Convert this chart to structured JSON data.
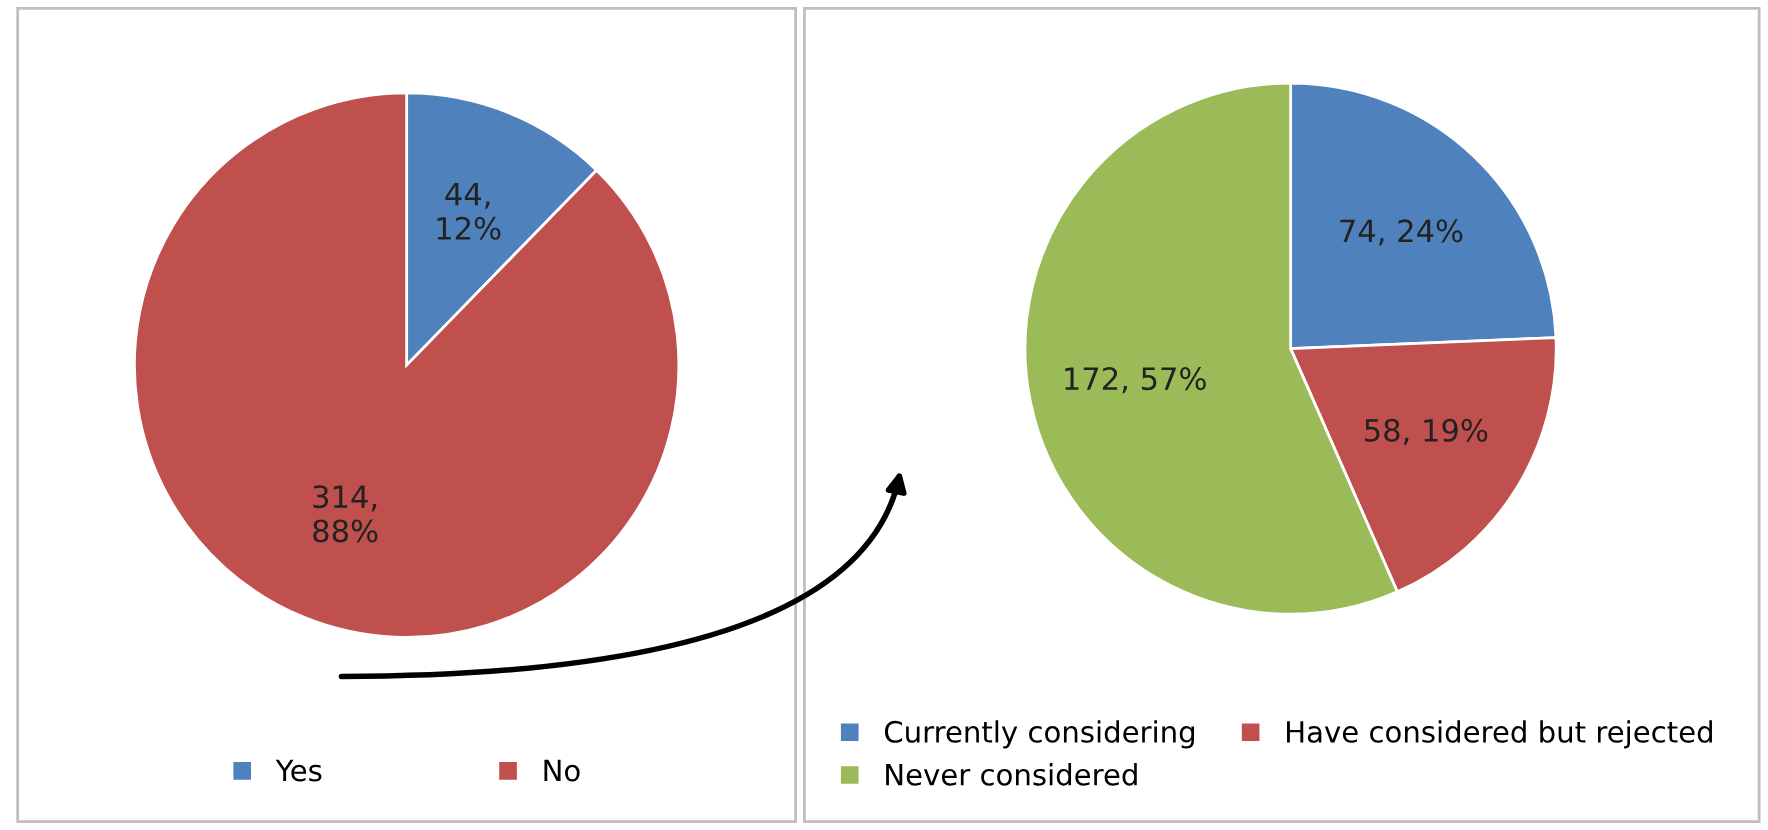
{
  "chart_data": [
    {
      "type": "pie",
      "categories": [
        "Yes",
        "No"
      ],
      "values": [
        44,
        314
      ],
      "colors": [
        "#4f81bd",
        "#c0504d"
      ],
      "value_labels": [
        "44,\n12%",
        "314,\n88%"
      ],
      "legend": "bottom"
    },
    {
      "type": "pie",
      "categories": [
        "Currently considering",
        "Have considered but rejected",
        "Never considered"
      ],
      "values": [
        74,
        58,
        172
      ],
      "colors": [
        "#4f81bd",
        "#c0504d",
        "#9bbb59"
      ],
      "value_labels": [
        "74, 24%",
        "58, 19%",
        "172, 57%"
      ],
      "legend": "bottom"
    }
  ]
}
